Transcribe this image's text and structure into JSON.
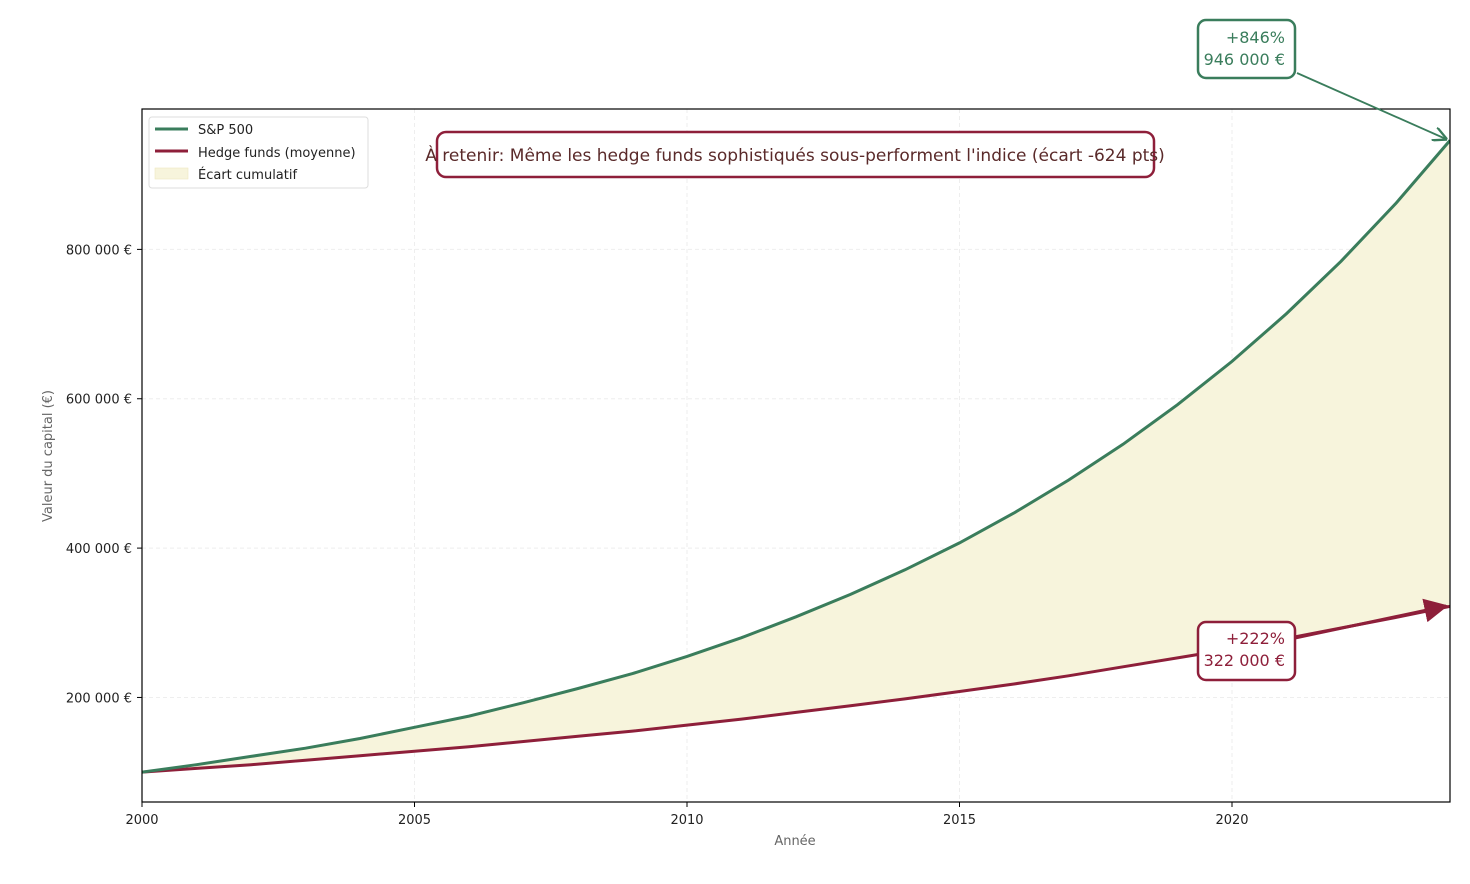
{
  "chart_data": {
    "type": "line",
    "title": "",
    "xlabel": "Année",
    "ylabel": "Valeur du capital (€)",
    "xlim": [
      2000,
      2024
    ],
    "ylim": [
      60000,
      988000
    ],
    "grid": true,
    "legend_position": "upper left",
    "x": [
      2000,
      2001,
      2002,
      2003,
      2004,
      2005,
      2006,
      2007,
      2008,
      2009,
      2010,
      2011,
      2012,
      2013,
      2014,
      2015,
      2016,
      2017,
      2018,
      2019,
      2020,
      2021,
      2022,
      2023,
      2024
    ],
    "series": [
      {
        "name": "S&P 500",
        "color": "#3a7d5c",
        "values": [
          100000,
          110000,
          121000,
          132000,
          145000,
          160000,
          175000,
          193000,
          212000,
          232000,
          255000,
          280000,
          308000,
          338000,
          371000,
          407000,
          447000,
          491000,
          539000,
          592000,
          650000,
          714000,
          784000,
          861000,
          946000
        ]
      },
      {
        "name": "Hedge funds (moyenne)",
        "color": "#8e1f3a",
        "values": [
          100000,
          105000,
          110000,
          116000,
          122000,
          128000,
          134000,
          141000,
          148000,
          155000,
          163000,
          171000,
          180000,
          189000,
          198000,
          208000,
          218000,
          229000,
          241000,
          253000,
          265000,
          279000,
          293000,
          307000,
          322000
        ]
      }
    ],
    "fill_between": {
      "name": "Écart cumulatif",
      "color": "#f7f4dc"
    },
    "x_ticks": [
      2000,
      2005,
      2010,
      2015,
      2020
    ],
    "x_tick_labels": [
      "2000",
      "2005",
      "2010",
      "2015",
      "2020"
    ],
    "y_ticks": [
      200000,
      400000,
      600000,
      800000
    ],
    "y_tick_labels": [
      "200 000 €",
      "400 000 €",
      "600 000 €",
      "800 000 €"
    ],
    "annotations": [
      {
        "series": "S&P 500",
        "line1": "+846%",
        "line2": "946 000 €",
        "color": "#3a7d5c"
      },
      {
        "series": "Hedge funds (moyenne)",
        "line1": "+222%",
        "line2": "322 000 €",
        "color": "#8e1f3a"
      },
      {
        "text": "À retenir: Même les hedge funds sophistiqués sous-performent l'indice (écart -624 pts)",
        "color": "#8e1f3a"
      }
    ]
  },
  "legend": {
    "items": [
      {
        "label": "S&P 500",
        "color": "#3a7d5c",
        "kind": "line"
      },
      {
        "label": "Hedge funds (moyenne)",
        "color": "#8e1f3a",
        "kind": "line"
      },
      {
        "label": "Écart cumulatif",
        "color": "#f7f4dc",
        "kind": "patch"
      }
    ]
  },
  "callouts": {
    "sp500": {
      "pct": "+846%",
      "value": "946 000 €"
    },
    "hedge": {
      "pct": "+222%",
      "value": "322 000 €"
    },
    "note": "À retenir: Même les hedge funds sophistiqués sous-performent l'indice (écart -624 pts)"
  },
  "axes": {
    "xlabel": "Année",
    "ylabel": "Valeur du capital (€)"
  }
}
